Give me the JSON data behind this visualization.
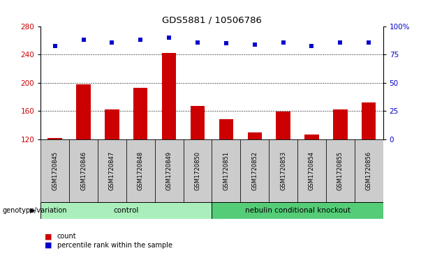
{
  "title": "GDS5881 / 10506786",
  "samples": [
    "GSM1720845",
    "GSM1720846",
    "GSM1720847",
    "GSM1720848",
    "GSM1720849",
    "GSM1720850",
    "GSM1720851",
    "GSM1720852",
    "GSM1720853",
    "GSM1720854",
    "GSM1720855",
    "GSM1720856"
  ],
  "count_values": [
    122,
    198,
    162,
    193,
    242,
    167,
    148,
    130,
    159,
    127,
    162,
    172
  ],
  "percentile_values": [
    83,
    88,
    86,
    88,
    90,
    86,
    85,
    84,
    86,
    83,
    86,
    86
  ],
  "groups": [
    {
      "label": "control",
      "start": 0,
      "end": 6,
      "color": "#aaeebb"
    },
    {
      "label": "nebulin conditional knockout",
      "start": 6,
      "end": 12,
      "color": "#55cc77"
    }
  ],
  "group_label": "genotype/variation",
  "ymin": 120,
  "ymax": 280,
  "yticks": [
    120,
    160,
    200,
    240,
    280
  ],
  "y2min": 0,
  "y2max": 100,
  "y2ticks": [
    0,
    25,
    50,
    75,
    100
  ],
  "y2ticklabels": [
    "0",
    "25",
    "50",
    "75",
    "100%"
  ],
  "bar_color": "#cc0000",
  "dot_color": "#0000cc",
  "grid_values": [
    160,
    200,
    240
  ],
  "bar_width": 0.5,
  "legend_count_label": "count",
  "legend_percentile_label": "percentile rank within the sample",
  "left_tick_color": "#cc0000",
  "right_tick_color": "#0000cc",
  "sample_box_color": "#cccccc",
  "fig_width": 6.13,
  "fig_height": 3.63,
  "dpi": 100
}
